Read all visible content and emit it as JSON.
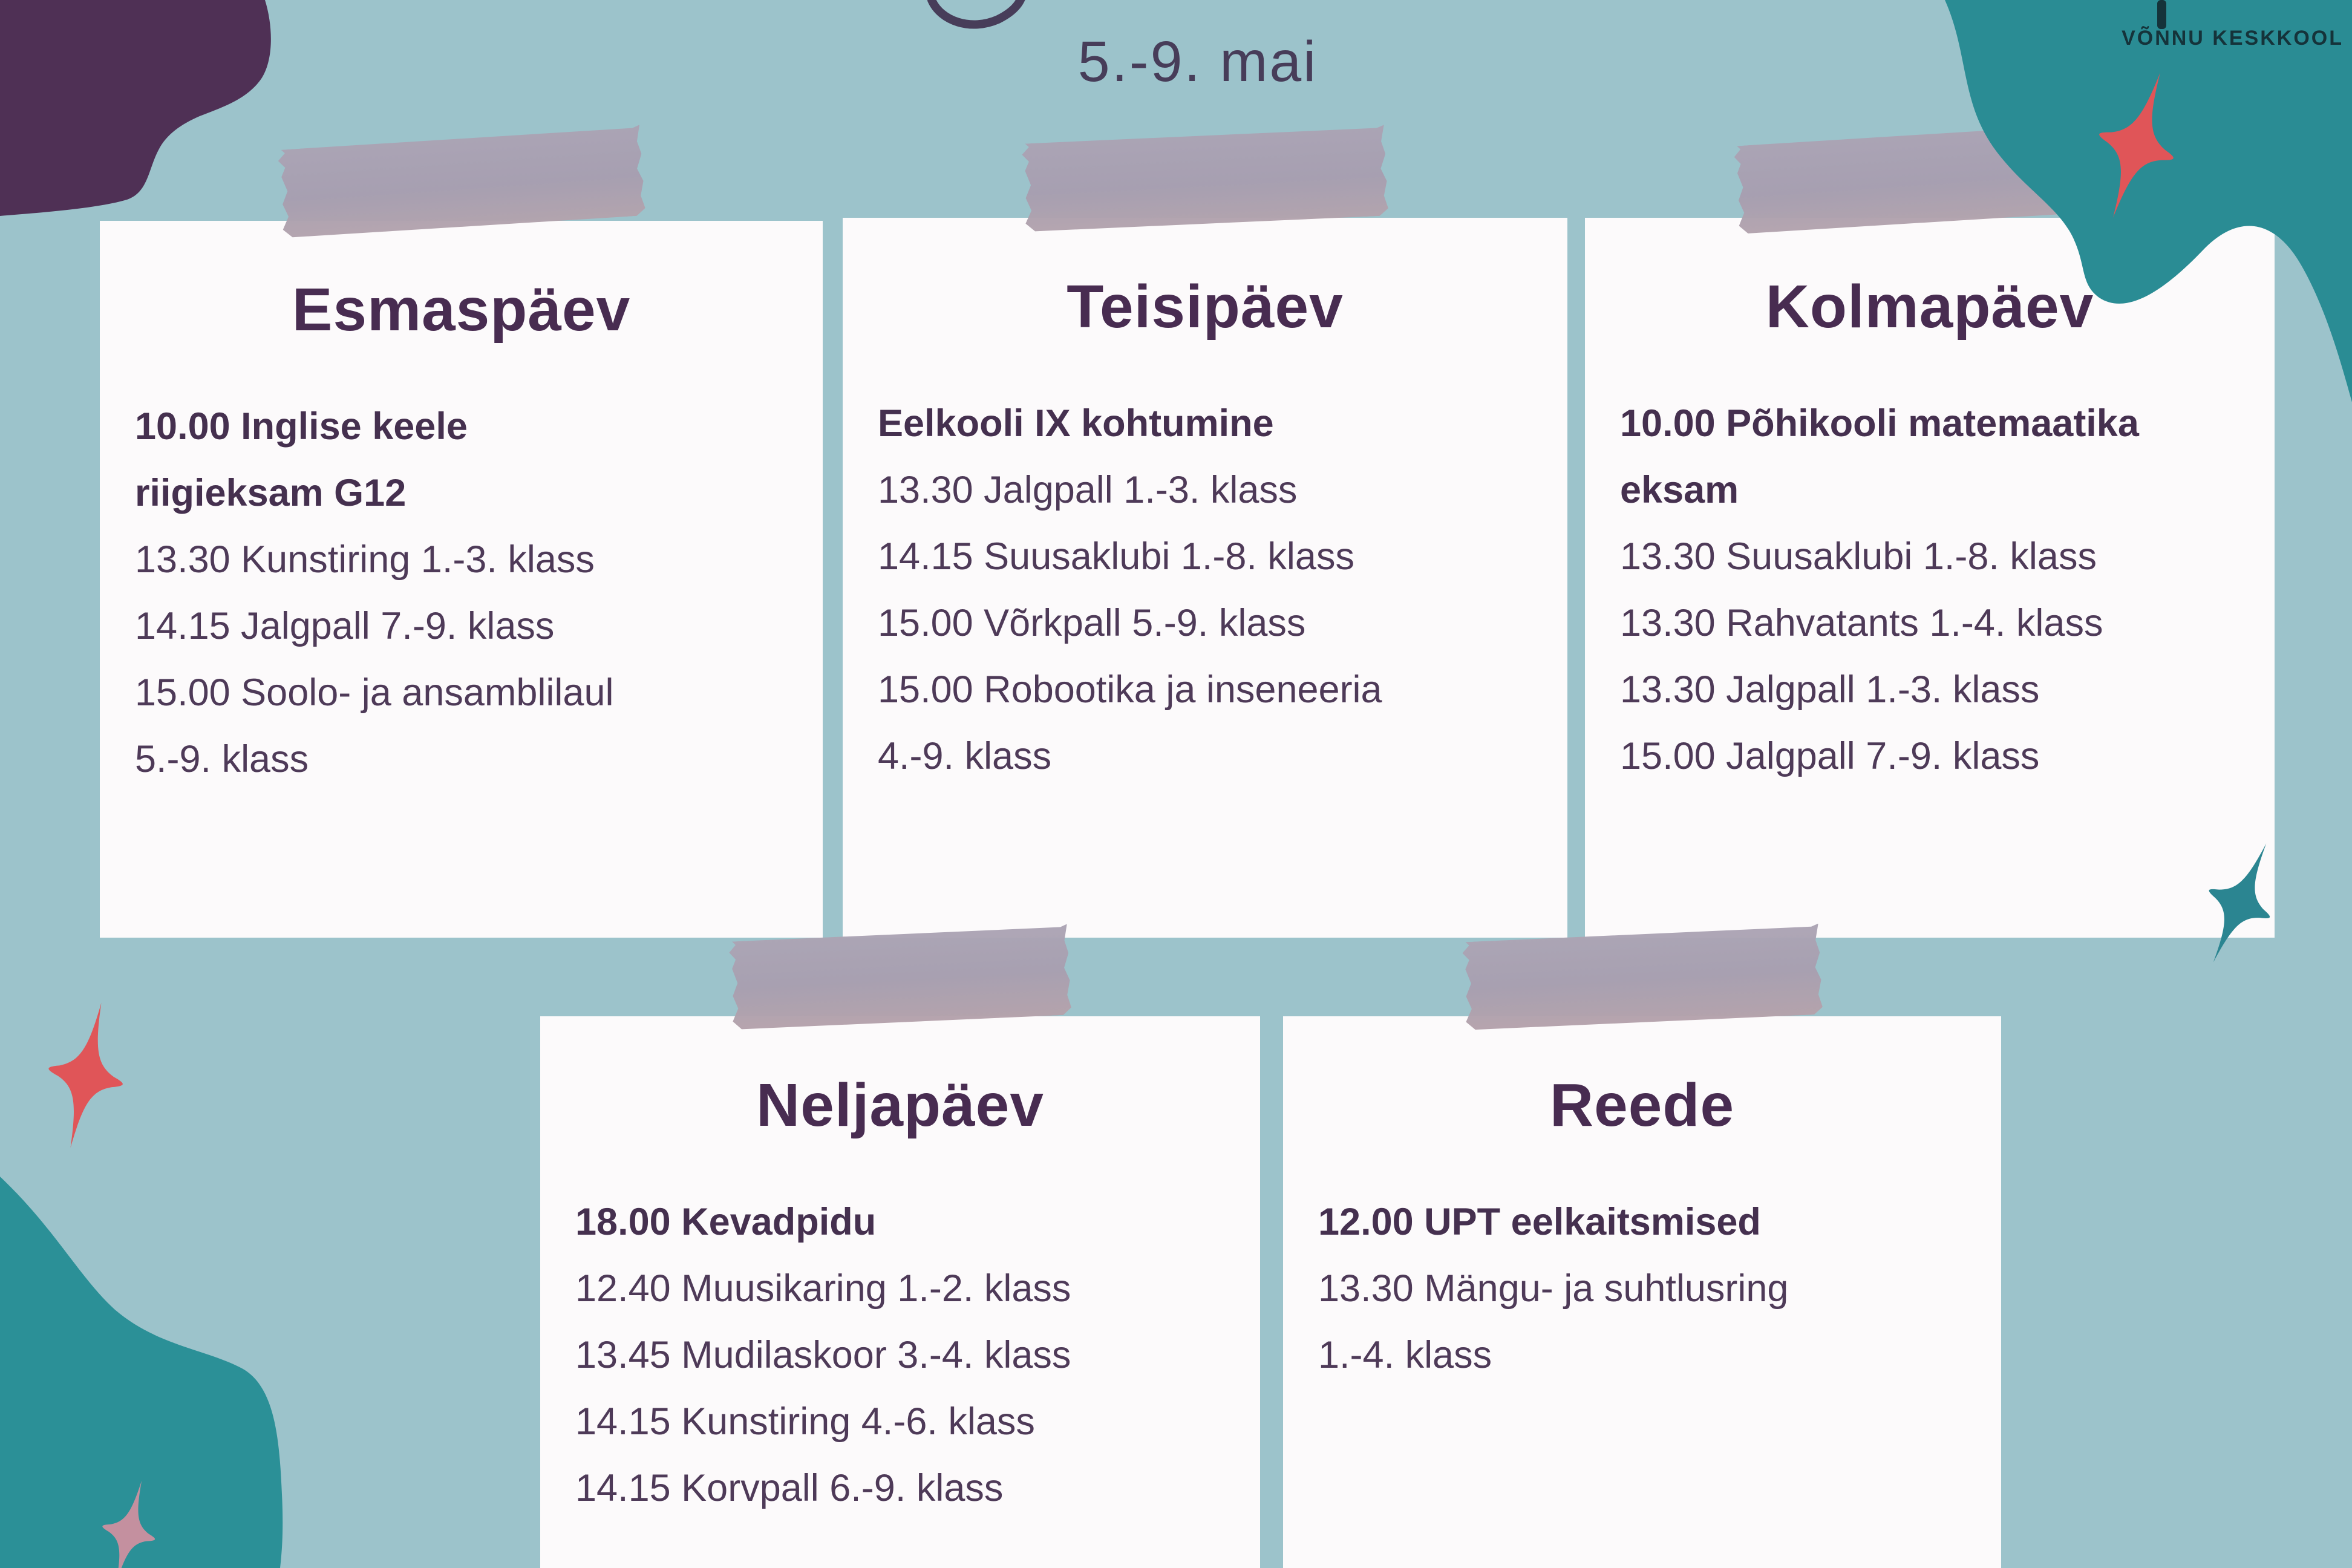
{
  "page": {
    "title": "5.-9. mai",
    "brand": "VÕNNU KESKKOOL"
  },
  "colors": {
    "bg": "#9cc3cb",
    "card": "#fcfafb",
    "plum": "#4f3055",
    "teal": "#2a8c94",
    "teal2": "#2b9097",
    "coral": "#e05558",
    "sparkle-teal": "#2b8591",
    "sparkle-pink": "#c4909f",
    "ink-title": "#473d59",
    "ink-day": "#482c51",
    "ink-body": "#4e3a58",
    "ink-body-bold": "#45304f",
    "ink-brand": "#15333a"
  },
  "days": [
    {
      "name": "Esmaspäev",
      "events": [
        {
          "text": "10.00 Inglise keele\nriigieksam G12",
          "bold": true
        },
        {
          "text": "13.30 Kunstiring 1.-3. klass",
          "bold": false
        },
        {
          "text": "14.15 Jalgpall 7.-9. klass",
          "bold": false
        },
        {
          "text": "15.00 Soolo- ja ansamblilaul\n5.-9. klass",
          "bold": false
        }
      ]
    },
    {
      "name": "Teisipäev",
      "events": [
        {
          "text": "Eelkooli IX kohtumine",
          "bold": true
        },
        {
          "text": "13.30 Jalgpall 1.-3. klass",
          "bold": false
        },
        {
          "text": "14.15 Suusaklubi 1.-8. klass",
          "bold": false
        },
        {
          "text": "15.00 Võrkpall 5.-9. klass",
          "bold": false
        },
        {
          "text": "15.00 Robootika ja inseneeria\n4.-9. klass",
          "bold": false
        }
      ]
    },
    {
      "name": "Kolmapäev",
      "events": [
        {
          "text": "10.00 Põhikooli matemaatika\neksam",
          "bold": true
        },
        {
          "text": "13.30 Suusaklubi 1.-8. klass",
          "bold": false
        },
        {
          "text": "13.30 Rahvatants 1.-4. klass",
          "bold": false
        },
        {
          "text": "13.30 Jalgpall 1.-3. klass",
          "bold": false
        },
        {
          "text": "15.00 Jalgpall 7.-9. klass",
          "bold": false
        }
      ]
    },
    {
      "name": "Neljapäev",
      "events": [
        {
          "text": "18.00 Kevadpidu",
          "bold": true
        },
        {
          "text": "12.40 Muusikaring 1.-2. klass",
          "bold": false
        },
        {
          "text": "13.45 Mudilaskoor 3.-4. klass",
          "bold": false
        },
        {
          "text": "14.15 Kunstiring 4.-6. klass",
          "bold": false
        },
        {
          "text": "14.15 Korvpall 6.-9. klass",
          "bold": false
        }
      ]
    },
    {
      "name": "Reede",
      "events": [
        {
          "text": "12.00 UPT eelkaitsmised",
          "bold": true
        },
        {
          "text": "13.30 Mängu- ja suhtlusring\n1.-4. klass",
          "bold": false
        }
      ]
    }
  ]
}
